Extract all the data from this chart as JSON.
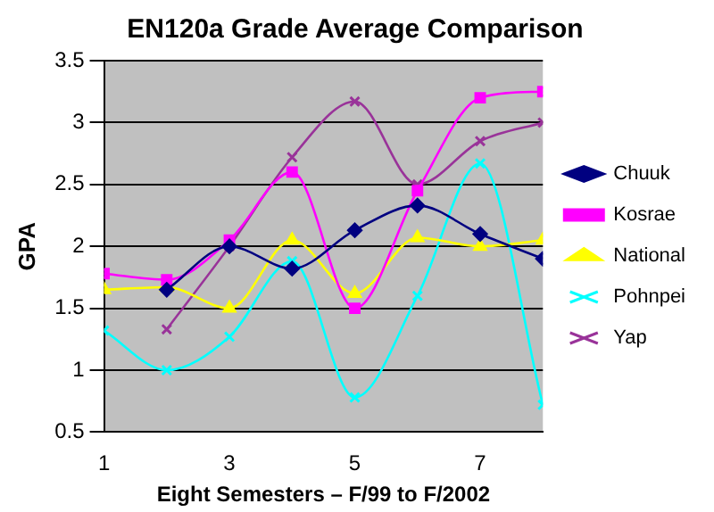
{
  "chart_data": {
    "type": "line",
    "title": "EN120a Grade Average Comparison",
    "xlabel": "Eight Semesters – F/99 to F/2002",
    "ylabel": "GPA",
    "x": [
      1,
      2,
      3,
      4,
      5,
      6,
      7,
      8
    ],
    "xlim": [
      1,
      8
    ],
    "xticks": [
      1,
      3,
      5,
      7
    ],
    "ylim": [
      0.5,
      3.5
    ],
    "yticks": [
      0.5,
      1,
      1.5,
      2,
      2.5,
      3,
      3.5
    ],
    "grid": "y",
    "legend": "right",
    "series": [
      {
        "name": "Chuuk",
        "color": "#000080",
        "marker": "diamond",
        "values": [
          null,
          1.65,
          2.0,
          1.82,
          2.13,
          2.33,
          2.1,
          1.9
        ]
      },
      {
        "name": "Kosrae",
        "color": "#ff00ff",
        "marker": "square",
        "values": [
          1.78,
          1.73,
          2.05,
          2.6,
          1.5,
          2.45,
          3.2,
          3.25
        ]
      },
      {
        "name": "National",
        "color": "#ffff00",
        "marker": "triangle",
        "values": [
          1.65,
          1.67,
          1.5,
          2.05,
          1.62,
          2.07,
          2.0,
          2.05
        ]
      },
      {
        "name": "Pohnpei",
        "color": "#00ffff",
        "marker": "cross",
        "values": [
          1.32,
          1.0,
          1.27,
          1.88,
          0.78,
          1.6,
          2.67,
          0.72
        ]
      },
      {
        "name": "Yap",
        "color": "#993399",
        "marker": "cross",
        "values": [
          null,
          1.33,
          2.0,
          2.72,
          3.17,
          2.5,
          2.85,
          3.0
        ]
      }
    ]
  }
}
